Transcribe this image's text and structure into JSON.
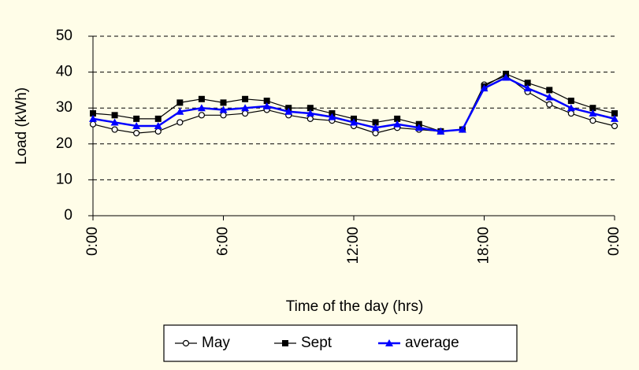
{
  "chart_data": {
    "type": "line",
    "y_label": "Load (kWh)",
    "x_label": "Time of the day (hrs)",
    "x": [
      0,
      1,
      2,
      3,
      4,
      5,
      6,
      7,
      8,
      9,
      10,
      11,
      12,
      13,
      14,
      15,
      16,
      17,
      18,
      19,
      20,
      21,
      22,
      23,
      24
    ],
    "series": [
      {
        "name": "May",
        "color": "#000000",
        "marker": "circle",
        "values": [
          25.5,
          24,
          23,
          23.5,
          26,
          28,
          28,
          28.5,
          29.5,
          28,
          27,
          26.5,
          25,
          23,
          24.5,
          24,
          23.5,
          24,
          36.5,
          39,
          34.5,
          31,
          28.5,
          26.5,
          25
        ]
      },
      {
        "name": "Sept",
        "color": "#000000",
        "marker": "square",
        "values": [
          28.5,
          28,
          27,
          27,
          31.5,
          32.5,
          31.5,
          32.5,
          32,
          30,
          30,
          28.5,
          27,
          26,
          27,
          25.5,
          23.5,
          24,
          36,
          39.5,
          37,
          35,
          32,
          30,
          28.5
        ]
      },
      {
        "name": "average",
        "color": "#0000ff",
        "marker": "triangle",
        "values": [
          27,
          26,
          25,
          25,
          29,
          30,
          29.5,
          30,
          30.5,
          29,
          28.5,
          27.5,
          26,
          24.5,
          25.5,
          24.5,
          23.5,
          24,
          35.5,
          38.5,
          35.5,
          33,
          30,
          28.5,
          27
        ]
      }
    ],
    "xlim": [
      0,
      24
    ],
    "xticks": [
      {
        "value": 0,
        "label": "0:00"
      },
      {
        "value": 6,
        "label": "6:00"
      },
      {
        "value": 12,
        "label": "12:00"
      },
      {
        "value": 18,
        "label": "18:00"
      },
      {
        "value": 24,
        "label": "0:00"
      }
    ],
    "ylim": [
      0,
      50
    ],
    "yticks": [
      0,
      10,
      20,
      30,
      40,
      50
    ],
    "grid": true,
    "legend": "bottom"
  }
}
